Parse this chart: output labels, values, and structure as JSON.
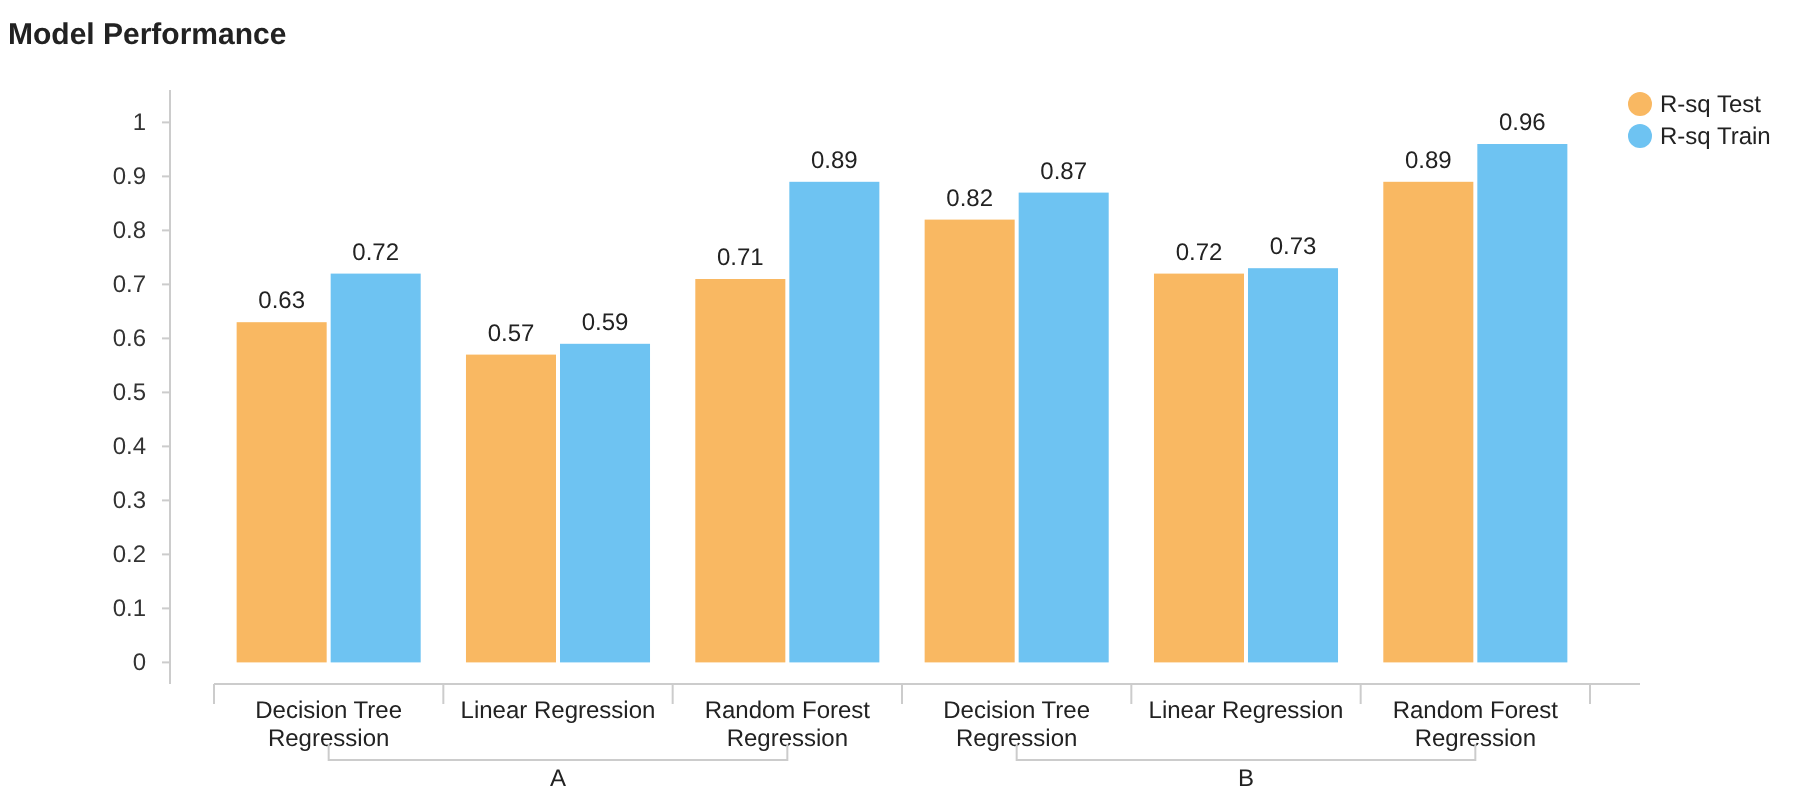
{
  "chart_data": {
    "type": "bar",
    "title": "Model Performance",
    "categories": [
      "Decision Tree Regression",
      "Linear Regression",
      "Random Forest Regression",
      "Decision Tree Regression",
      "Linear Regression",
      "Random Forest Regression"
    ],
    "series": [
      {
        "name": "R-sq Test",
        "color": "#f9b862",
        "values": [
          0.63,
          0.57,
          0.71,
          0.82,
          0.72,
          0.89
        ]
      },
      {
        "name": "R-sq Train",
        "color": "#6ec3f2",
        "values": [
          0.72,
          0.59,
          0.89,
          0.87,
          0.73,
          0.96
        ]
      }
    ],
    "annotations": [
      "A",
      "B"
    ],
    "ylim": [
      -0.04,
      1.06
    ],
    "yticks": [
      0,
      0.1,
      0.2,
      0.3,
      0.4,
      0.5,
      0.6,
      0.7,
      0.8,
      0.9,
      1
    ],
    "data_labels": true,
    "legend": "top right",
    "grid": false
  }
}
